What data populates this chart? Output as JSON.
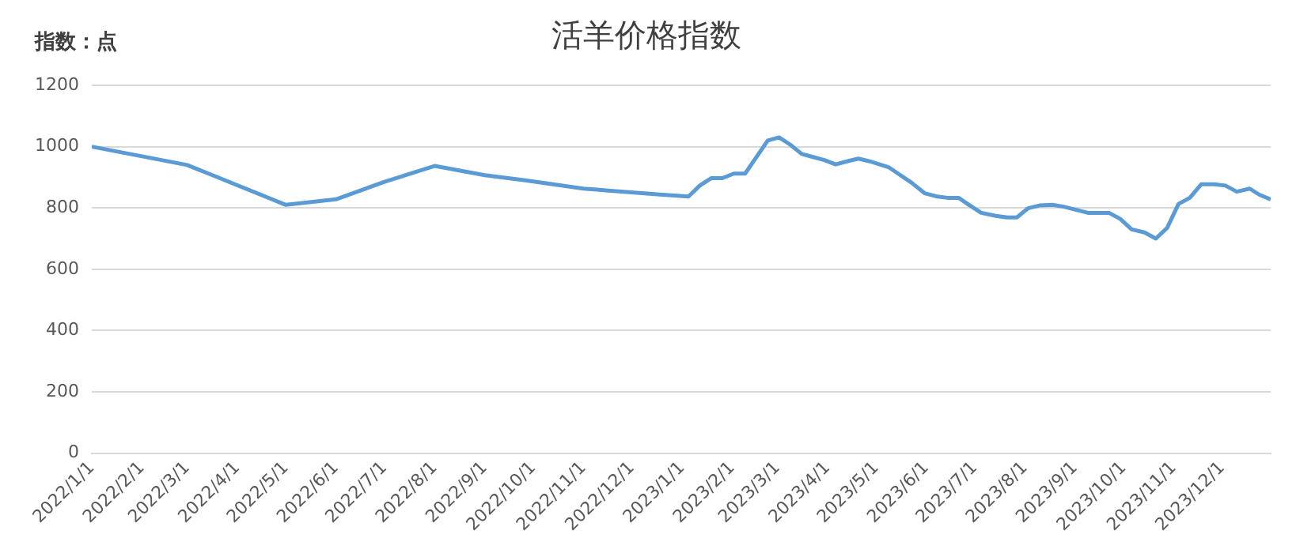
{
  "chart_data": {
    "type": "line",
    "title": "活羊价格指数",
    "ylabel": "指数：点",
    "x": [
      "2022-01-01",
      "2022-03-01",
      "2022-05-01",
      "2022-06-01",
      "2022-07-01",
      "2022-08-01",
      "2022-09-01",
      "2022-09-26",
      "2022-11-01",
      "2022-12-20",
      "2023-01-05",
      "2023-01-12",
      "2023-01-19",
      "2023-01-26",
      "2023-02-02",
      "2023-02-09",
      "2023-02-23",
      "2023-03-02",
      "2023-03-09",
      "2023-03-16",
      "2023-03-23",
      "2023-03-30",
      "2023-04-06",
      "2023-04-13",
      "2023-04-20",
      "2023-04-27",
      "2023-05-09",
      "2023-05-23",
      "2023-05-31",
      "2023-06-07",
      "2023-06-14",
      "2023-06-21",
      "2023-06-28",
      "2023-07-05",
      "2023-07-14",
      "2023-07-21",
      "2023-07-27",
      "2023-08-03",
      "2023-08-10",
      "2023-08-18",
      "2023-08-25",
      "2023-09-09",
      "2023-09-22",
      "2023-09-29",
      "2023-10-06",
      "2023-10-14",
      "2023-10-21",
      "2023-10-28",
      "2023-11-04",
      "2023-11-11",
      "2023-11-18",
      "2023-11-26",
      "2023-12-03",
      "2023-12-10",
      "2023-12-18",
      "2023-12-24",
      "2023-12-31"
    ],
    "series": [
      {
        "color": "#5b9bd5",
        "values": [
          1000,
          940,
          810,
          828,
          885,
          937,
          907,
          890,
          863,
          843,
          837,
          873,
          897,
          897,
          912,
          912,
          1020,
          1030,
          1006,
          976,
          966,
          956,
          942,
          952,
          961,
          952,
          932,
          882,
          848,
          838,
          833,
          833,
          808,
          784,
          774,
          769,
          769,
          799,
          808,
          810,
          804,
          784,
          784,
          764,
          730,
          720,
          700,
          735,
          813,
          833,
          877,
          877,
          873,
          853,
          863,
          843,
          828
        ]
      }
    ],
    "xlim": [
      "2022-01-01",
      "2023-12-31"
    ],
    "xticks": [
      {
        "value": "2022-01-01",
        "label": "2022/1/1"
      },
      {
        "value": "2022-02-01",
        "label": "2022/2/1"
      },
      {
        "value": "2022-03-01",
        "label": "2022/3/1"
      },
      {
        "value": "2022-04-01",
        "label": "2022/4/1"
      },
      {
        "value": "2022-05-01",
        "label": "2022/5/1"
      },
      {
        "value": "2022-06-01",
        "label": "2022/6/1"
      },
      {
        "value": "2022-07-01",
        "label": "2022/7/1"
      },
      {
        "value": "2022-08-01",
        "label": "2022/8/1"
      },
      {
        "value": "2022-09-01",
        "label": "2022/9/1"
      },
      {
        "value": "2022-10-01",
        "label": "2022/10/1"
      },
      {
        "value": "2022-11-01",
        "label": "2022/11/1"
      },
      {
        "value": "2022-12-01",
        "label": "2022/12/1"
      },
      {
        "value": "2023-01-01",
        "label": "2023/1/1"
      },
      {
        "value": "2023-02-01",
        "label": "2023/2/1"
      },
      {
        "value": "2023-03-01",
        "label": "2023/3/1"
      },
      {
        "value": "2023-04-01",
        "label": "2023/4/1"
      },
      {
        "value": "2023-05-01",
        "label": "2023/5/1"
      },
      {
        "value": "2023-06-01",
        "label": "2023/6/1"
      },
      {
        "value": "2023-07-01",
        "label": "2023/7/1"
      },
      {
        "value": "2023-08-01",
        "label": "2023/8/1"
      },
      {
        "value": "2023-09-01",
        "label": "2023/9/1"
      },
      {
        "value": "2023-10-01",
        "label": "2023/10/1"
      },
      {
        "value": "2023-11-01",
        "label": "2023/11/1"
      },
      {
        "value": "2023-12-01",
        "label": "2023/12/1"
      }
    ],
    "ylim": [
      0,
      1200
    ],
    "yticks": [
      0,
      200,
      400,
      600,
      800,
      1000,
      1200
    ],
    "grid": "y",
    "legend": false,
    "marker": "none",
    "line_style": "solid"
  }
}
